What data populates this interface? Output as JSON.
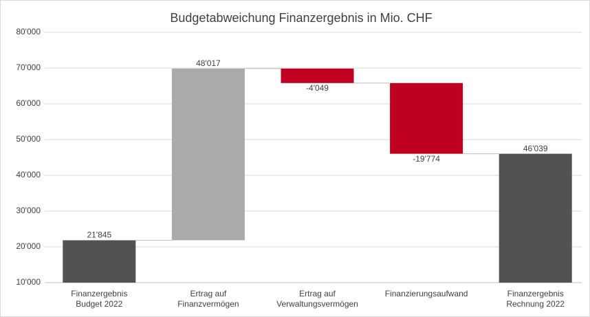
{
  "chart_data": {
    "type": "waterfall",
    "title": "Budgetabweichung Finanzergebnis in Mio. CHF",
    "categories": [
      "Finanzergebnis\nBudget 2022",
      "Ertrag auf\nFinanzvermögen",
      "Ertrag auf\nVerwaltungsvermögen",
      "Finanzierungsaufwand",
      "Finanzergebnis\nRechnung 2022"
    ],
    "values": [
      21845,
      48017,
      -4049,
      -19774,
      46039
    ],
    "value_labels": [
      "21'845",
      "48'017",
      "-4'049",
      "-19'774",
      "46'039"
    ],
    "is_total": [
      true,
      false,
      false,
      false,
      true
    ],
    "colors": [
      "#525252",
      "#aaaaaa",
      "#c00020",
      "#c00020",
      "#525252"
    ],
    "ylim": [
      10000,
      80000
    ],
    "yticks": [
      {
        "value": 10000,
        "label": "10'000"
      },
      {
        "value": 20000,
        "label": "20'000"
      },
      {
        "value": 30000,
        "label": "30'000"
      },
      {
        "value": 40000,
        "label": "40'000"
      },
      {
        "value": 50000,
        "label": "50'000"
      },
      {
        "value": 60000,
        "label": "60'000"
      },
      {
        "value": 70000,
        "label": "70'000"
      },
      {
        "value": 80000,
        "label": "80'000"
      }
    ],
    "grid": true
  }
}
